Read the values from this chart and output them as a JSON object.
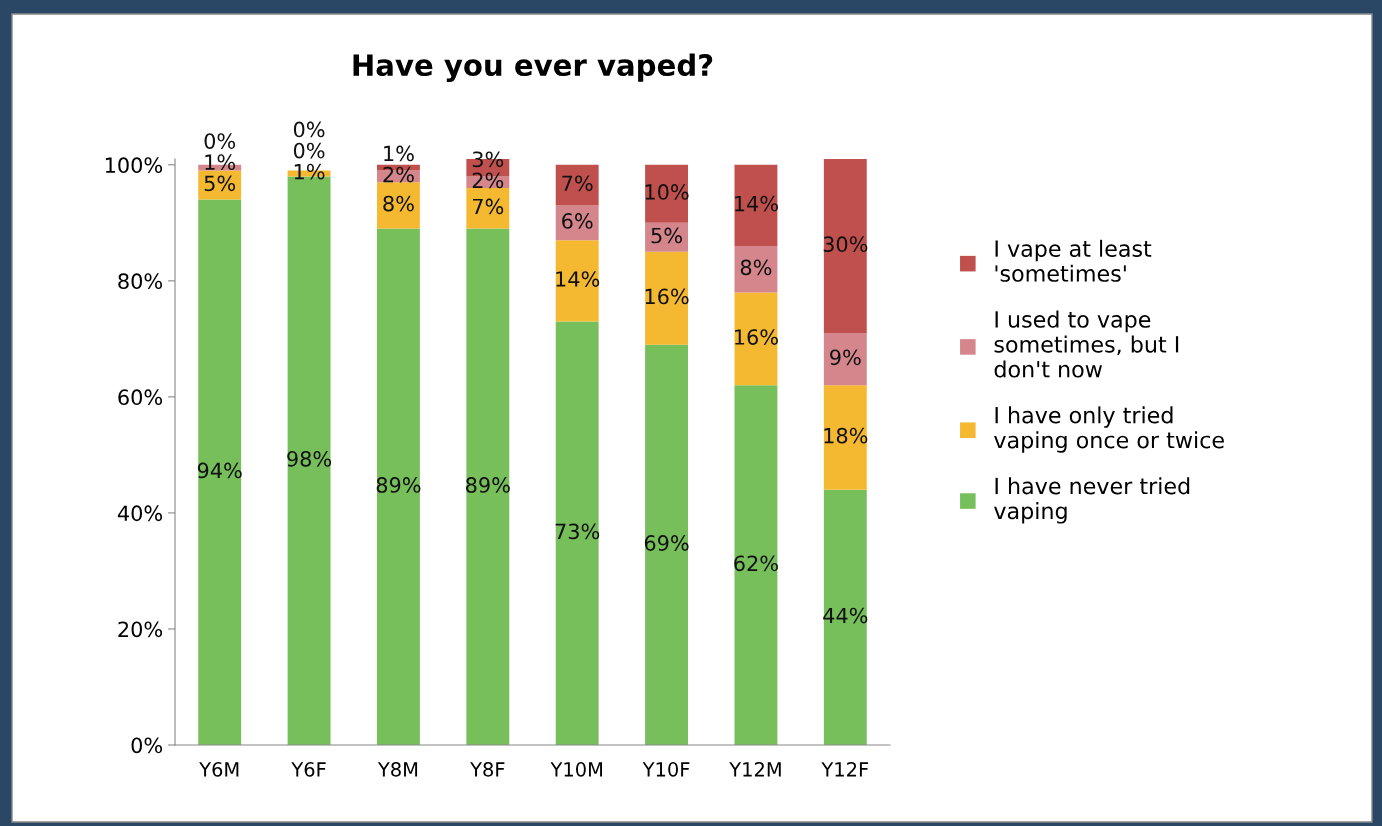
{
  "chart_data": {
    "type": "bar",
    "title": "Have you ever vaped?",
    "stacked": true,
    "categories": [
      "Y6M",
      "Y6F",
      "Y8M",
      "Y8F",
      "Y10M",
      "Y10F",
      "Y12M",
      "Y12F"
    ],
    "series": [
      {
        "name": "I have never tried vaping",
        "color": "#77bf5b",
        "values": [
          94,
          98,
          89,
          89,
          73,
          69,
          62,
          44
        ],
        "value_labels": [
          "94%",
          "98%",
          "89%",
          "89%",
          "73%",
          "69%",
          "62%",
          "44%"
        ]
      },
      {
        "name": "I have only tried vaping once or twice",
        "color": "#f4b930",
        "values": [
          5,
          1,
          8,
          7,
          14,
          16,
          16,
          18
        ],
        "value_labels": [
          "5%",
          "1%",
          "8%",
          "7%",
          "14%",
          "16%",
          "16%",
          "18%"
        ]
      },
      {
        "name": "I used to vape sometimes, but I don't now",
        "color": "#d4868c",
        "values": [
          1,
          0,
          2,
          2,
          6,
          5,
          8,
          9
        ],
        "value_labels": [
          "1%",
          "0%",
          "2%",
          "2%",
          "6%",
          "5%",
          "8%",
          "9%"
        ]
      },
      {
        "name": "I vape at least 'sometimes'",
        "color": "#c0504d",
        "values": [
          0,
          0,
          1,
          3,
          7,
          10,
          14,
          30
        ],
        "value_labels": [
          "0%",
          "0%",
          "1%",
          "3%",
          "7%",
          "10%",
          "14%",
          "30%"
        ]
      }
    ],
    "ylim": [
      0,
      101
    ],
    "yticks": [
      {
        "value": 0,
        "label": "0%"
      },
      {
        "value": 20,
        "label": "20%"
      },
      {
        "value": 40,
        "label": "40%"
      },
      {
        "value": 60,
        "label": "60%"
      },
      {
        "value": 80,
        "label": "80%"
      },
      {
        "value": 100,
        "label": "100%"
      }
    ],
    "legend": "right",
    "grid": false
  }
}
